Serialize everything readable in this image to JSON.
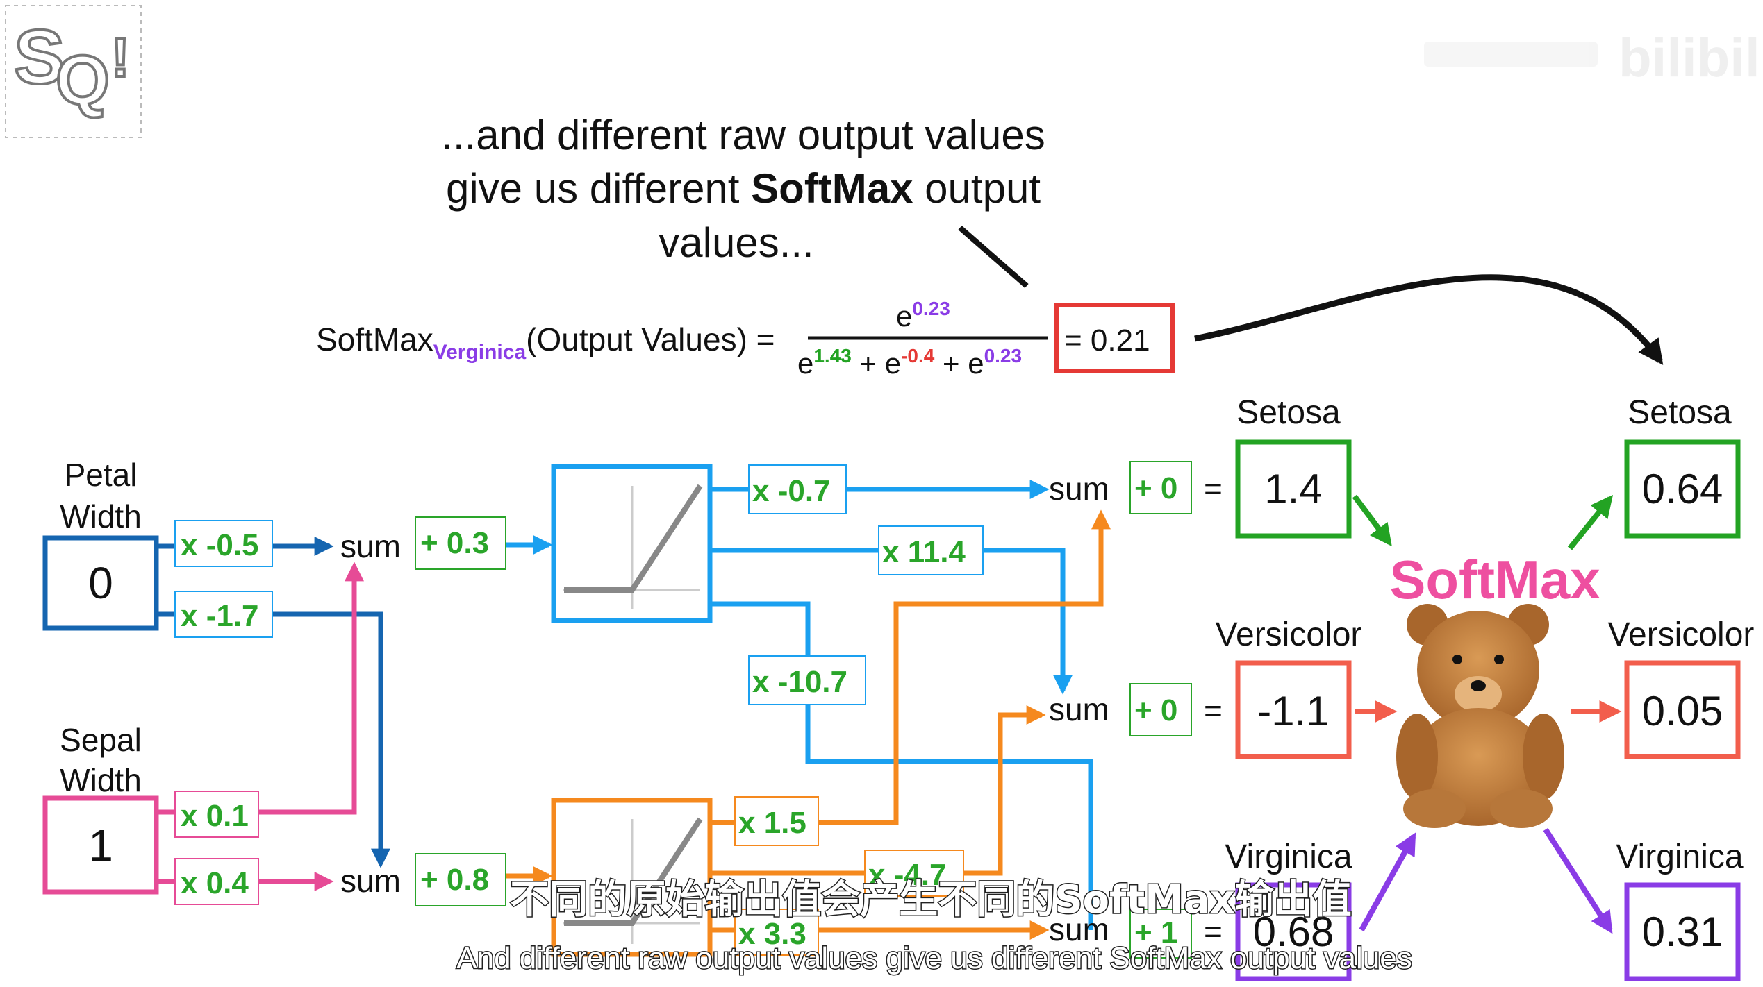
{
  "header": {
    "caption_line1": "...and different raw output values",
    "caption_line2_pre": "give us different ",
    "caption_line2_bold": "SoftMax",
    "caption_line2_post": " output",
    "caption_line3": "values..."
  },
  "watermark": {
    "logo_text": "bilibili"
  },
  "formula": {
    "func": "SoftMax",
    "subscript": "Verginica",
    "args": "(Output Values) =",
    "numerator_base": "e",
    "numerator_exp": "0.23",
    "den_e1": "e",
    "den_exp1": "1.43",
    "plus1": "+",
    "den_e2": "e",
    "den_exp2": "-0.4",
    "plus2": "+",
    "den_e3": "e",
    "den_exp3": "0.23",
    "result": "= 0.21"
  },
  "inputs": {
    "petal_label_1": "Petal",
    "petal_label_2": "Width",
    "petal_value": "0",
    "sepal_label_1": "Sepal",
    "sepal_label_2": "Width",
    "sepal_value": "1"
  },
  "weights": {
    "w_petal_top": "x -0.5",
    "w_petal_bottom": "x -1.7",
    "w_sepal_top": "x 0.1",
    "w_sepal_bottom": "x 0.4",
    "bias_top": "+ 0.3",
    "bias_bottom": "+ 0.8",
    "w_o1": "x -0.7",
    "w_o2": "x 11.4",
    "w_o3": "x -10.7",
    "w_o4": "x 1.5",
    "w_o5": "x -4.7",
    "w_o6": "x 3.3",
    "sum_label": "sum"
  },
  "outputs": {
    "bias_setosa": "+ 0",
    "bias_versicolor": "+ 0",
    "bias_virginica": "+ 1",
    "equals": "=",
    "raw_setosa_label": "Setosa",
    "raw_setosa_value": "1.4",
    "raw_versicolor_label": "Versicolor",
    "raw_versicolor_value": "-1.1",
    "raw_virginica_label": "Virginica",
    "raw_virginica_value": "0.68",
    "softmax_label": "SoftMax",
    "sm_setosa_label": "Setosa",
    "sm_setosa_value": "0.64",
    "sm_versicolor_label": "Versicolor",
    "sm_versicolor_value": "0.05",
    "sm_virginica_label": "Virginica",
    "sm_virginica_value": "0.31"
  },
  "subtitles": {
    "chinese": "不同的原始输出值会产生不同的SoftMax输出值",
    "english": "And different raw output values give us different SoftMax output values"
  },
  "colors": {
    "blue_dark": "#1565b0",
    "blue_light": "#1aa0f0",
    "pink": "#e64b96",
    "orange": "#f5891e",
    "green": "#23a323",
    "red": "#e53935",
    "coral": "#f25e4c",
    "purple": "#8a3ce6",
    "softmax_pink": "#ee4fa0",
    "weight_green": "#2aa52a"
  }
}
